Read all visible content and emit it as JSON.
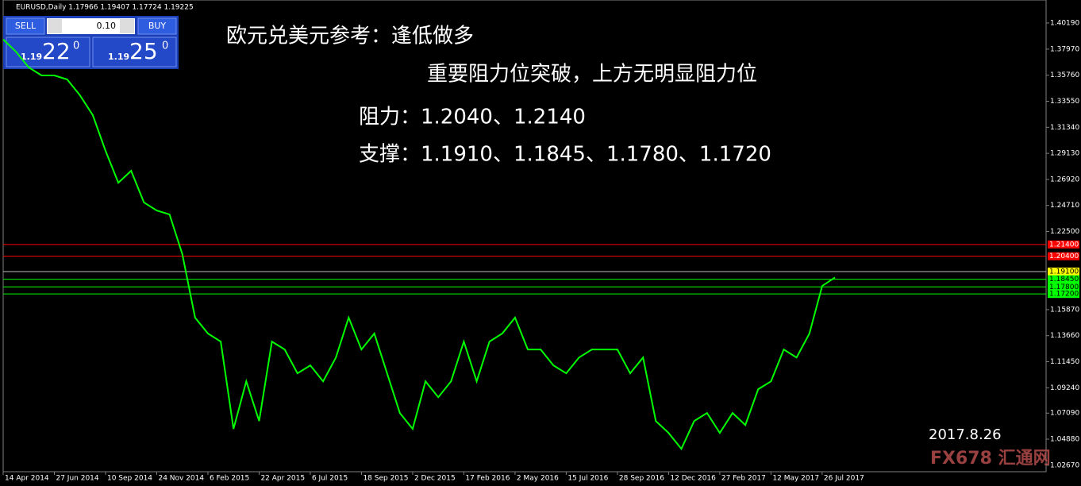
{
  "chart_data": {
    "type": "line",
    "title": "EURUSD,Daily  1.17966 1.19407 1.17724 1.19225",
    "annotations": [
      "欧元兑美元参考：逢低做多",
      "重要阻力位突破，上方无明显阻力位",
      "阻力：1.2040、1.2140",
      "支撑：1.1910、1.1845、1.1780、1.1720",
      "2017.8.26"
    ],
    "watermark": "FX678 汇通网",
    "color": "#00ff00",
    "categories": [
      "14 Apr 2014",
      null,
      null,
      null,
      "27 Jun 2014",
      null,
      null,
      null,
      "10 Sep 2014",
      null,
      null,
      null,
      "24 Nov 2014",
      null,
      null,
      null,
      "6 Feb 2015",
      null,
      null,
      null,
      "22 Apr 2015",
      null,
      null,
      null,
      "6 Jul 2015",
      null,
      null,
      null,
      "18 Sep 2015",
      null,
      null,
      null,
      "2 Dec 2015",
      null,
      null,
      null,
      "17 Feb 2016",
      null,
      null,
      null,
      "2 May 2016",
      null,
      null,
      null,
      "15 Jul 2016",
      null,
      null,
      null,
      "28 Sep 2016",
      null,
      null,
      null,
      "12 Dec 2016",
      null,
      null,
      null,
      "27 Feb 2017",
      null,
      null,
      null,
      "12 May 2017",
      null,
      null,
      null,
      "26 Jul 2017",
      null
    ],
    "values": [
      1.388,
      1.3776,
      1.3642,
      1.3574,
      1.3574,
      1.354,
      1.3406,
      1.3237,
      1.2934,
      1.2664,
      1.2765,
      1.2496,
      1.2428,
      1.2395,
      1.2058,
      1.1519,
      1.1384,
      1.1316,
      1.0575,
      1.0979,
      1.0642,
      1.1316,
      1.1249,
      1.1047,
      1.1114,
      1.0979,
      1.1181,
      1.1519,
      1.1249,
      1.1384,
      1.1047,
      1.071,
      1.0575,
      1.0979,
      1.0844,
      1.0979,
      1.1316,
      1.0979,
      1.1316,
      1.1384,
      1.1519,
      1.1249,
      1.1249,
      1.1114,
      1.1047,
      1.1181,
      1.1249,
      1.1249,
      1.1249,
      1.1047,
      1.1181,
      1.0642,
      1.0541,
      1.0406,
      1.0642,
      1.071,
      1.0541,
      1.071,
      1.0608,
      1.0912,
      1.0979,
      1.1249,
      1.1181,
      1.1384,
      1.1788,
      1.186
    ],
    "ylim": [
      1.0212,
      1.4214
    ],
    "yticks": [
      {
        "value": 1.4019,
        "label": "1.40190"
      },
      {
        "value": 1.3797,
        "label": "1.37970"
      },
      {
        "value": 1.3576,
        "label": "1.35760"
      },
      {
        "value": 1.3355,
        "label": "1.33550"
      },
      {
        "value": 1.3134,
        "label": "1.31340"
      },
      {
        "value": 1.2913,
        "label": "1.29130"
      },
      {
        "value": 1.2692,
        "label": "1.26920"
      },
      {
        "value": 1.2471,
        "label": "1.24710"
      },
      {
        "value": 1.225,
        "label": "1.22500"
      },
      {
        "value": 1.1587,
        "label": "1.15870"
      },
      {
        "value": 1.1366,
        "label": "1.13660"
      },
      {
        "value": 1.1145,
        "label": "1.11450"
      },
      {
        "value": 1.0924,
        "label": "1.09240"
      },
      {
        "value": 1.0709,
        "label": "1.07090"
      },
      {
        "value": 1.0488,
        "label": "1.04880"
      },
      {
        "value": 1.0267,
        "label": "1.02670"
      }
    ],
    "levels": [
      {
        "value": 1.214,
        "label": "1.21400",
        "color": "#ff0000",
        "label_color": "#ff0000",
        "text_color": "#ffffff"
      },
      {
        "value": 1.204,
        "label": "1.20400",
        "color": "#ff0000",
        "label_color": "#ff0000",
        "text_color": "#ffffff"
      },
      {
        "value": 1.191,
        "label": "1.19100",
        "color": "#c0c0c0",
        "label_color": "#ffff00",
        "text_color": "#000000"
      },
      {
        "value": 1.1845,
        "label": "1.18450",
        "color": "#00ff00",
        "label_color": "#00ff00",
        "text_color": "#000000"
      },
      {
        "value": 1.178,
        "label": "1.17800",
        "color": "#00ff00",
        "label_color": "#00ff00",
        "text_color": "#000000"
      },
      {
        "value": 1.172,
        "label": "1.17200",
        "color": "#00ff00",
        "label_color": "#00ff00",
        "text_color": "#000000"
      }
    ]
  },
  "trade_panel": {
    "sell": "SELL",
    "lot": "0.10",
    "buy": "BUY",
    "bid_prefix": "1.19",
    "bid_pips": "22",
    "bid_point": "0",
    "ask_prefix": "1.19",
    "ask_pips": "25",
    "ask_point": "0"
  }
}
